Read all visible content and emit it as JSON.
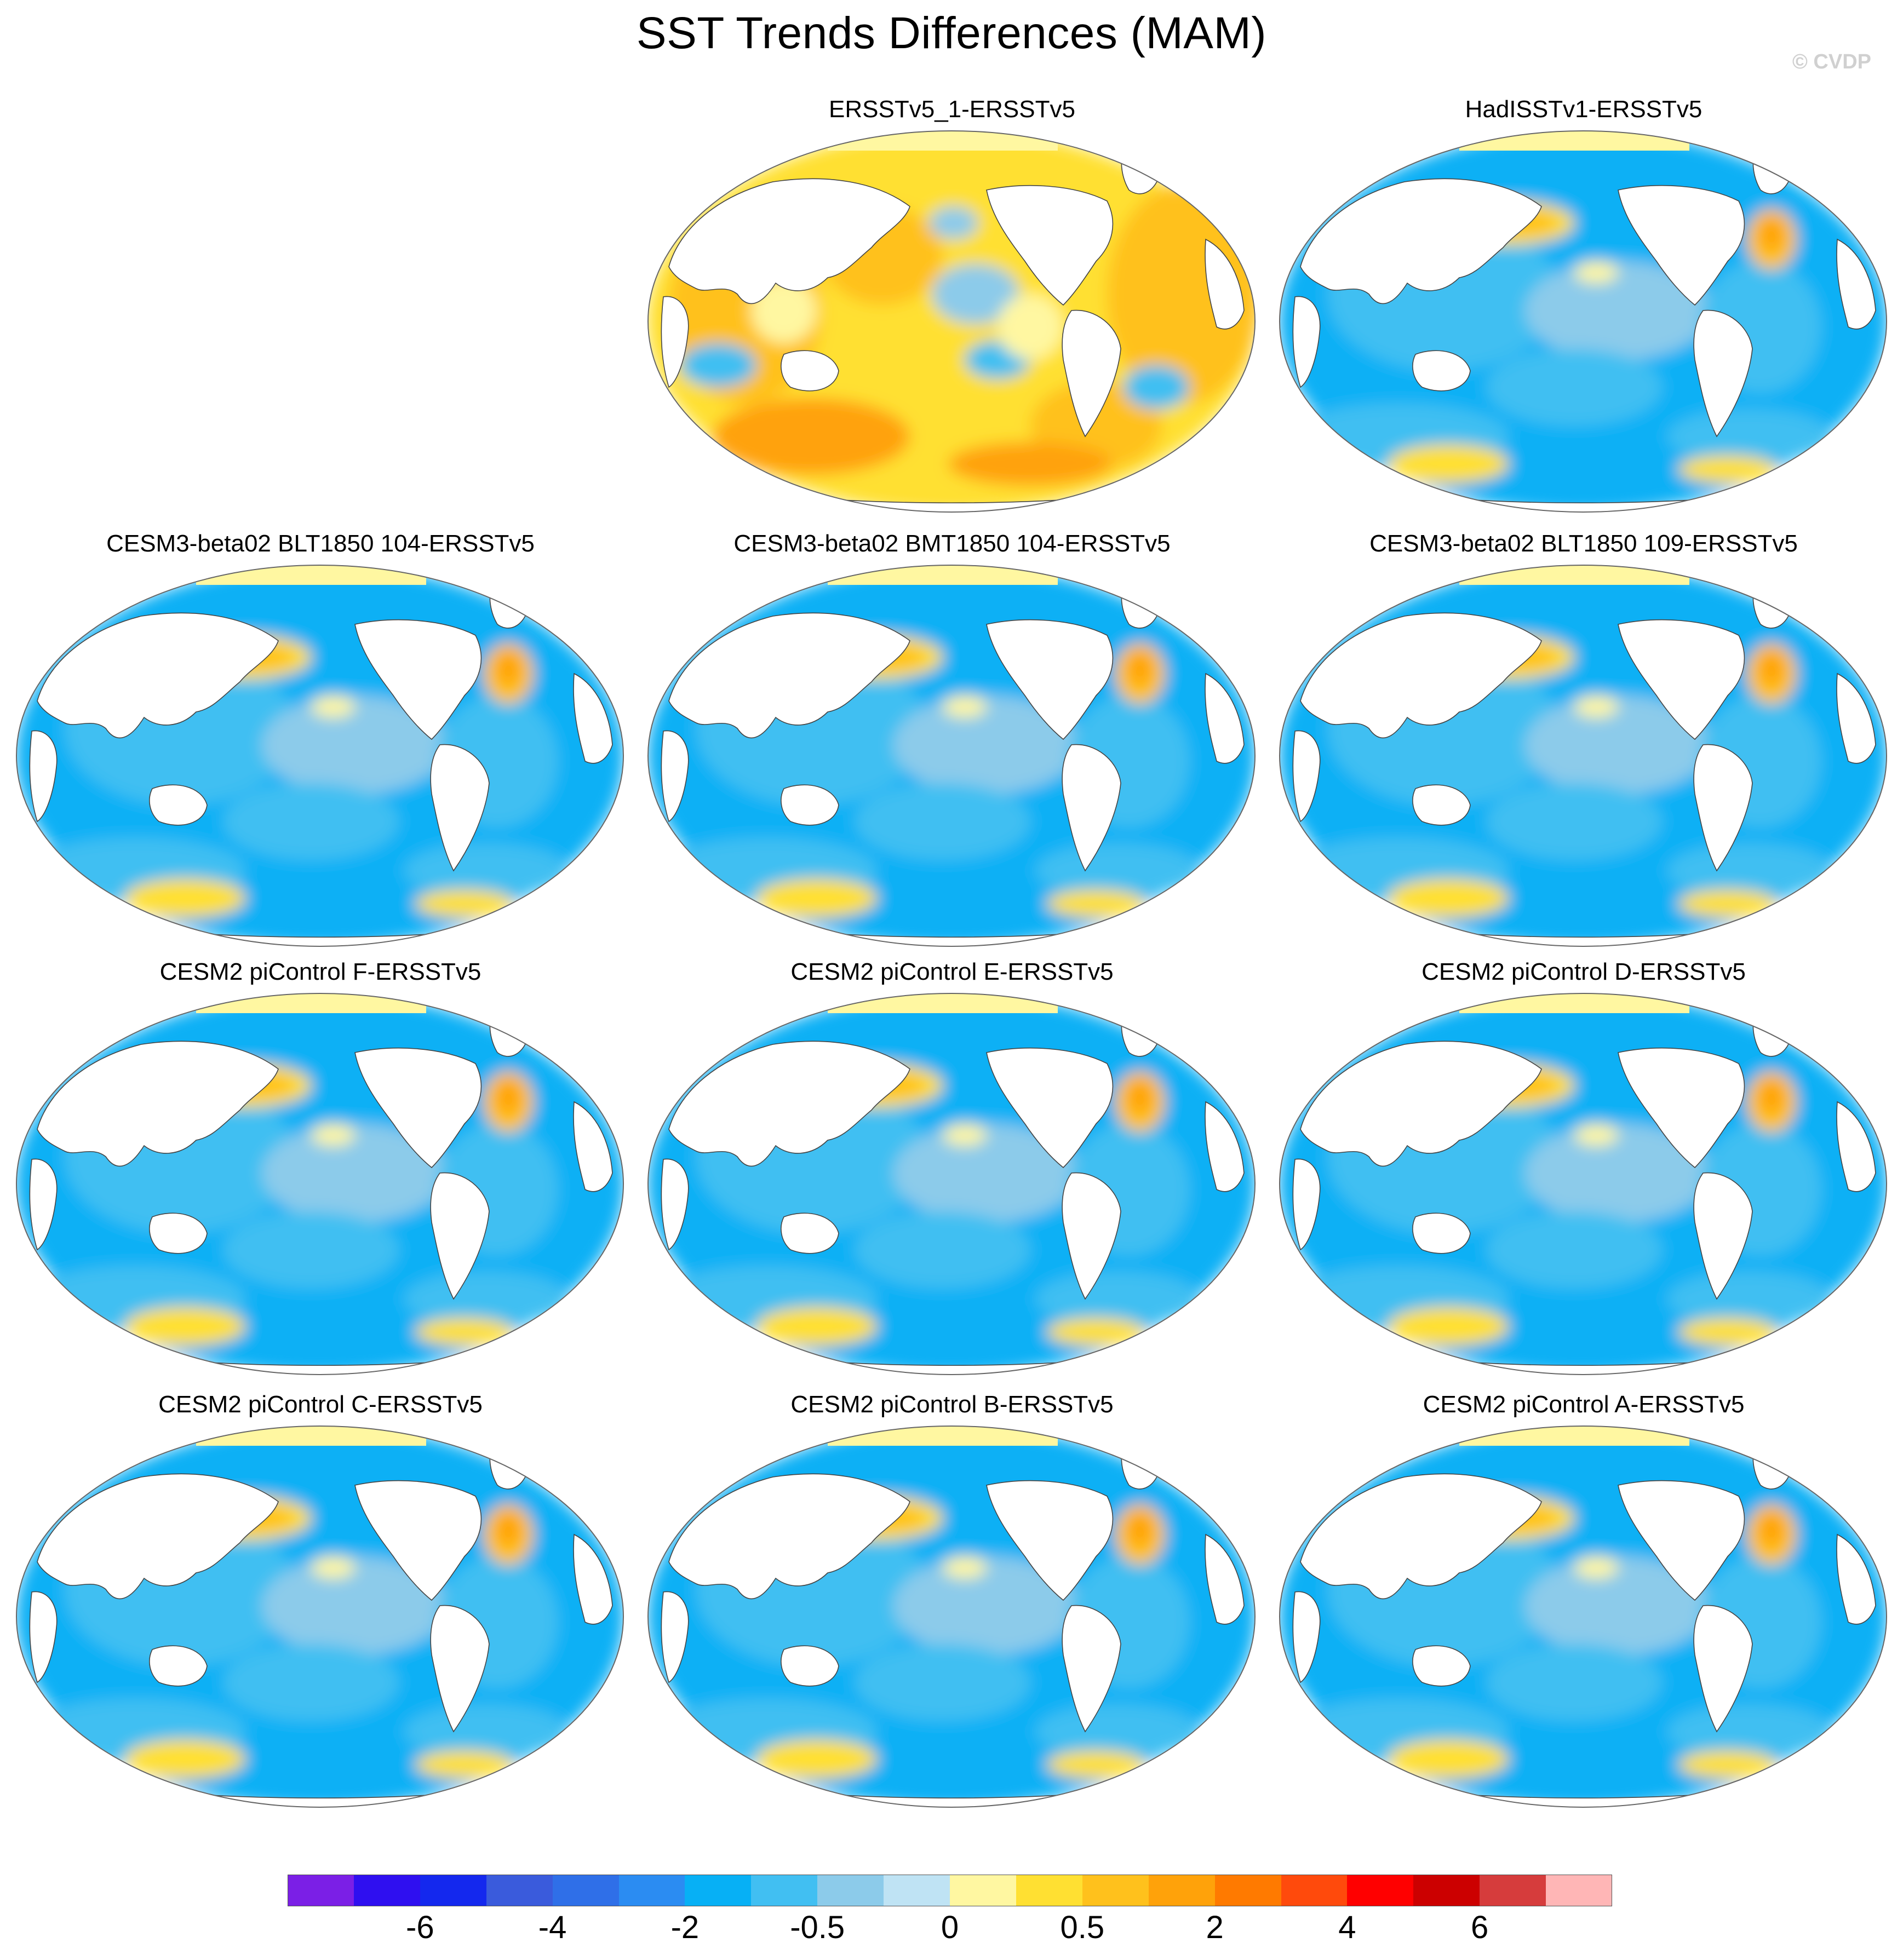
{
  "title": "SST Trends Differences (MAM)",
  "credit": "© CVDP",
  "panels": [
    {
      "label": "ERSSTv5_1-ERSSTv5",
      "pattern": "warm"
    },
    {
      "label": "HadISSTv1-ERSSTv5",
      "pattern": "cool"
    },
    {
      "label": "CESM3-beta02 BLT1850 104-ERSSTv5",
      "pattern": "cool"
    },
    {
      "label": "CESM3-beta02 BMT1850 104-ERSSTv5",
      "pattern": "cool"
    },
    {
      "label": "CESM3-beta02 BLT1850 109-ERSSTv5",
      "pattern": "cool"
    },
    {
      "label": "CESM2 piControl F-ERSSTv5",
      "pattern": "cool"
    },
    {
      "label": "CESM2 piControl E-ERSSTv5",
      "pattern": "cool"
    },
    {
      "label": "CESM2 piControl D-ERSSTv5",
      "pattern": "cool"
    },
    {
      "label": "CESM2 piControl C-ERSSTv5",
      "pattern": "cool"
    },
    {
      "label": "CESM2 piControl B-ERSSTv5",
      "pattern": "cool"
    },
    {
      "label": "CESM2 piControl A-ERSSTv5",
      "pattern": "cool"
    }
  ],
  "colorbar": {
    "colors": [
      "#7b1fe6",
      "#2f0ff0",
      "#1428ee",
      "#3a5bdc",
      "#2f6fe8",
      "#2b8cf2",
      "#07b0f5",
      "#41bff2",
      "#8ccbea",
      "#bfe3f4",
      "#fff7a1",
      "#ffe032",
      "#ffc11c",
      "#ffa20a",
      "#ff7a00",
      "#ff4a0c",
      "#ff0000",
      "#cc0000",
      "#d63c3c",
      "#ffb6b6"
    ],
    "labels": [
      "-6",
      "-4",
      "-2",
      "-0.5",
      "0",
      "0.5",
      "2",
      "4",
      "6"
    ]
  }
}
